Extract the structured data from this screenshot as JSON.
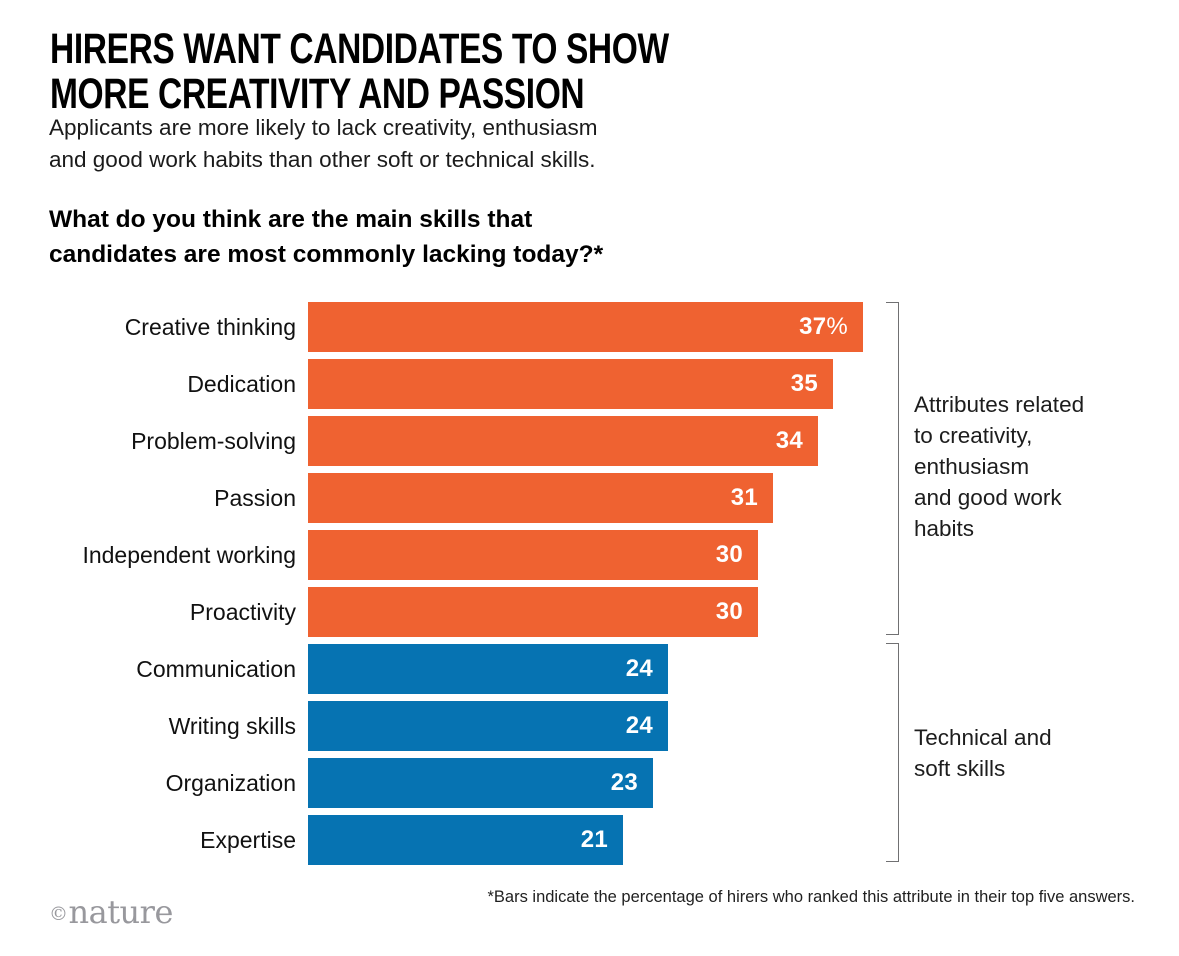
{
  "header": {
    "title": "HIRERS WANT CANDIDATES TO SHOW\nMORE CREATIVITY AND PASSION",
    "subtitle": "Applicants are more likely to lack creativity, enthusiasm\nand good work habits than other soft or technical skills.",
    "question": "What do you think are the main skills that\ncandidates are most commonly lacking today?*"
  },
  "chart_data": {
    "type": "bar",
    "orientation": "horizontal",
    "title": "What do you think are the main skills that candidates are most commonly lacking today?*",
    "xlim": [
      0,
      37
    ],
    "grid": false,
    "legend": false,
    "items": [
      {
        "label": "Creative thinking",
        "value": 37,
        "suffix": "%",
        "group": "creativity"
      },
      {
        "label": "Dedication",
        "value": 35,
        "suffix": "",
        "group": "creativity"
      },
      {
        "label": "Problem-solving",
        "value": 34,
        "suffix": "",
        "group": "creativity"
      },
      {
        "label": "Passion",
        "value": 31,
        "suffix": "",
        "group": "creativity"
      },
      {
        "label": "Independent working",
        "value": 30,
        "suffix": "",
        "group": "creativity"
      },
      {
        "label": "Proactivity",
        "value": 30,
        "suffix": "",
        "group": "creativity"
      },
      {
        "label": "Communication",
        "value": 24,
        "suffix": "",
        "group": "technical"
      },
      {
        "label": "Writing skills",
        "value": 24,
        "suffix": "",
        "group": "technical"
      },
      {
        "label": "Organization",
        "value": 23,
        "suffix": "",
        "group": "technical"
      },
      {
        "label": "Expertise",
        "value": 21,
        "suffix": "",
        "group": "technical"
      }
    ],
    "groups": {
      "creativity": {
        "color": "#EF6231",
        "annotation": "Attributes related\nto creativity,\nenthusiasm\nand good work\nhabits"
      },
      "technical": {
        "color": "#0673B2",
        "annotation": "Technical and\nsoft skills"
      }
    }
  },
  "footer": {
    "footnote": "*Bars indicate the percentage of hirers who ranked this attribute in their top five answers.",
    "credit_symbol": "©",
    "credit_name": "nature"
  }
}
